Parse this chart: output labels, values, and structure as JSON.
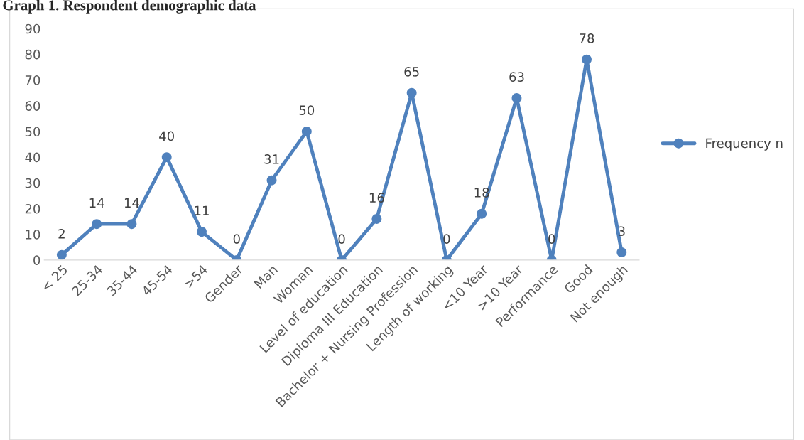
{
  "chart_data": {
    "type": "line",
    "title": "Graph 1. Respondent demographic data",
    "categories": [
      "< 25",
      "25-34",
      "35-44",
      "45-54",
      ">54",
      "Gender",
      "Man",
      "Woman",
      "Level of education",
      "Diploma III Education",
      "Bachelor + Nursing Profession",
      "Length of working",
      "<10 Year",
      ">10 Year",
      "Performance",
      "Good",
      "Not enough"
    ],
    "series": [
      {
        "name": "Frequency n",
        "color": "#4f81bd",
        "values": [
          2,
          14,
          14,
          40,
          11,
          0,
          31,
          50,
          0,
          16,
          65,
          0,
          18,
          63,
          0,
          78,
          3
        ]
      }
    ],
    "ylim": [
      0,
      90
    ],
    "yticks": [
      0,
      10,
      20,
      30,
      40,
      50,
      60,
      70,
      80,
      90
    ],
    "data_labels": true,
    "grid": false,
    "legend": "right",
    "marker": "circle",
    "line_style": "solid"
  }
}
